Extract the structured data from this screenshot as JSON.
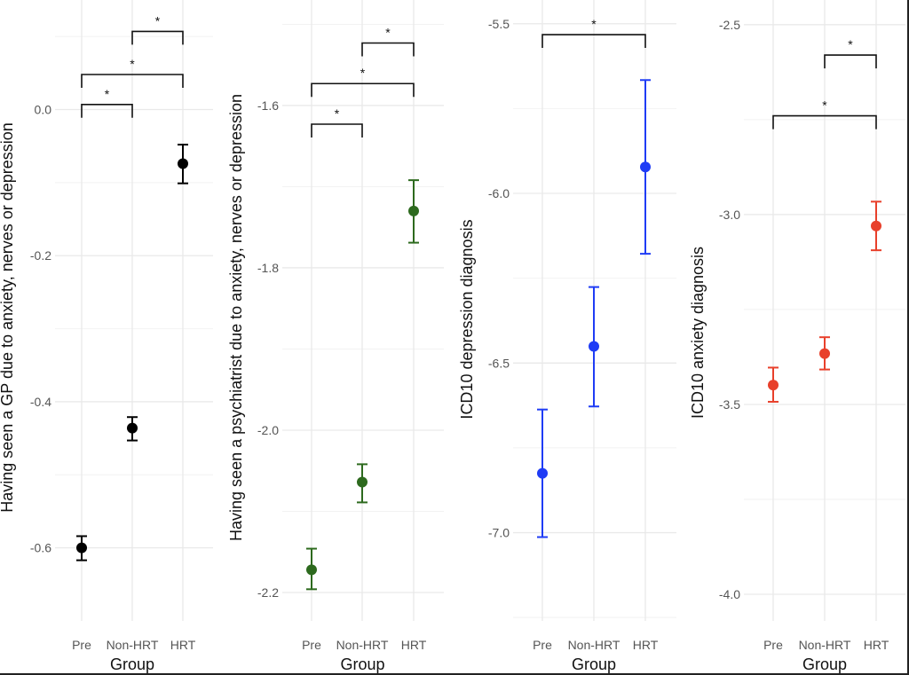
{
  "chart_data": [
    {
      "type": "scatter",
      "subtype": "point-errorbar",
      "title": "",
      "xlabel": "Group",
      "ylabel": "Having seen a GP due to anxiety, nerves or depression",
      "categories": [
        "Pre",
        "Non-HRT",
        "HRT"
      ],
      "color": "#000000",
      "yticks": [
        0.0,
        -0.2,
        -0.4,
        -0.6
      ],
      "ytick_labels": [
        "0.0",
        "-0.2",
        "-0.4",
        "-0.6"
      ],
      "minor_grid": true,
      "ylim": [
        -0.7,
        0.15
      ],
      "grid": true,
      "values": [
        -0.6,
        -0.436,
        -0.074
      ],
      "lower": [
        -0.617,
        -0.453,
        -0.101
      ],
      "upper": [
        -0.584,
        -0.421,
        -0.048
      ],
      "significance": [
        {
          "from": "Pre",
          "to": "Non-HRT",
          "y": 0.007,
          "label": "*"
        },
        {
          "from": "Pre",
          "to": "HRT",
          "y": 0.048,
          "label": "*"
        },
        {
          "from": "Non-HRT",
          "to": "HRT",
          "y": 0.107,
          "label": "*"
        }
      ]
    },
    {
      "type": "scatter",
      "subtype": "point-errorbar",
      "title": "",
      "xlabel": "Group",
      "ylabel": "Having seen a psychiatrist due to anxiety, nerves or depression",
      "categories": [
        "Pre",
        "Non-HRT",
        "HRT"
      ],
      "color": "#2d6a1e",
      "yticks": [
        -1.6,
        -1.8,
        -2.0,
        -2.2
      ],
      "ytick_labels": [
        "-1.6",
        "-1.8",
        "-2.0",
        "-2.2"
      ],
      "minor_grid": true,
      "ylim": [
        -2.235,
        -1.47
      ],
      "grid": true,
      "values": [
        -2.172,
        -2.064,
        -1.73
      ],
      "lower": [
        -2.196,
        -2.089,
        -1.769
      ],
      "upper": [
        -2.146,
        -2.042,
        -1.692
      ],
      "significance": [
        {
          "from": "Pre",
          "to": "Non-HRT",
          "y": -1.623,
          "label": "*"
        },
        {
          "from": "Pre",
          "to": "HRT",
          "y": -1.573,
          "label": "*"
        },
        {
          "from": "Non-HRT",
          "to": "HRT",
          "y": -1.523,
          "label": "*"
        }
      ]
    },
    {
      "type": "scatter",
      "subtype": "point-errorbar",
      "title": "",
      "xlabel": "Group",
      "ylabel": "ICD10 depression diagnosis",
      "categories": [
        "Pre",
        "Non-HRT",
        "HRT"
      ],
      "color": "#1f3cf5",
      "yticks": [
        -5.5,
        -6.0,
        -6.5,
        -7.0
      ],
      "ytick_labels": [
        "-5.5",
        "-6.0",
        "-6.5",
        "-7.0"
      ],
      "minor_grid": true,
      "ylim": [
        -7.26,
        -5.43
      ],
      "grid": true,
      "values": [
        -6.825,
        -6.451,
        -5.922
      ],
      "lower": [
        -7.013,
        -6.628,
        -6.178
      ],
      "upper": [
        -6.637,
        -6.276,
        -5.666
      ],
      "significance": [
        {
          "from": "Pre",
          "to": "HRT",
          "y": -5.532,
          "label": "*"
        }
      ]
    },
    {
      "type": "scatter",
      "subtype": "point-errorbar",
      "title": "",
      "xlabel": "Group",
      "ylabel": "ICD10 anxiety diagnosis",
      "categories": [
        "Pre",
        "Non-HRT",
        "HRT"
      ],
      "color": "#e8402b",
      "yticks": [
        -2.5,
        -3.0,
        -3.5,
        -4.0
      ],
      "ytick_labels": [
        "-2.5",
        "-3.0",
        "-3.5",
        "-4.0"
      ],
      "minor_grid": true,
      "ylim": [
        -4.07,
        -2.435
      ],
      "grid": true,
      "values": [
        -3.449,
        -3.366,
        -3.03
      ],
      "lower": [
        -3.493,
        -3.408,
        -3.094
      ],
      "upper": [
        -3.403,
        -3.323,
        -2.966
      ],
      "significance": [
        {
          "from": "Pre",
          "to": "HRT",
          "y": -2.74,
          "label": "*"
        },
        {
          "from": "Non-HRT",
          "to": "HRT",
          "y": -2.58,
          "label": "*"
        }
      ]
    }
  ]
}
